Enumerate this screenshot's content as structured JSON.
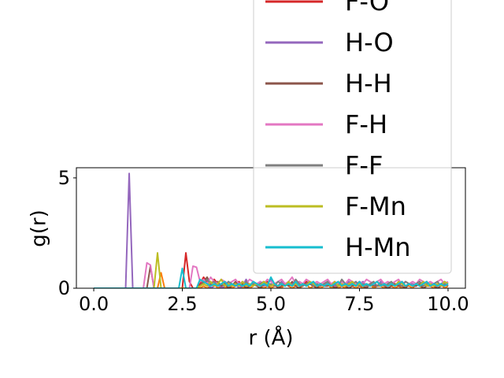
{
  "chart_data": {
    "type": "line",
    "y_label": "g(r)",
    "x_label": "r (Å)",
    "x": [
      0,
      0.1,
      0.2,
      0.3,
      0.4,
      0.5,
      0.6,
      0.7,
      0.8,
      0.9,
      1,
      1.1,
      1.2,
      1.3,
      1.4,
      1.5,
      1.6,
      1.7,
      1.8,
      1.9,
      2,
      2.1,
      2.2,
      2.3,
      2.4,
      2.5,
      2.6,
      2.7,
      2.8,
      2.9,
      3,
      3.1,
      3.2,
      3.3,
      3.4,
      3.5,
      3.6,
      3.7,
      3.8,
      3.9,
      4,
      4.1,
      4.2,
      4.3,
      4.4,
      4.5,
      4.6,
      4.7,
      4.8,
      4.9,
      5,
      5.1,
      5.2,
      5.3,
      5.4,
      5.5,
      5.6,
      5.7,
      5.8,
      5.9,
      6,
      6.1,
      6.2,
      6.3,
      6.4,
      6.5,
      6.6,
      6.7,
      6.8,
      6.9,
      7,
      7.1,
      7.2,
      7.3,
      7.4,
      7.5,
      7.6,
      7.7,
      7.8,
      7.9,
      8,
      8.1,
      8.2,
      8.3,
      8.4,
      8.5,
      8.6,
      8.7,
      8.8,
      8.9,
      9,
      9.1,
      9.2,
      9.3,
      9.4,
      9.5,
      9.6,
      9.7,
      9.8,
      9.9,
      10
    ],
    "series": [
      {
        "color": "#ff7f0e",
        "values": [
          0,
          0,
          0,
          0,
          0,
          0,
          0,
          0,
          0,
          0,
          0,
          0,
          0,
          0,
          0,
          0,
          0,
          0,
          0,
          0.7,
          0,
          0,
          0,
          0,
          0,
          0,
          0,
          0,
          0,
          0,
          0,
          0.1,
          0,
          0.1,
          0.2,
          0,
          0.1,
          0,
          0.1,
          0,
          0.1,
          0.2,
          0,
          0.1,
          0,
          0.1,
          0.2,
          0.1,
          0,
          0.1,
          0,
          0.1,
          0.1,
          0,
          0.2,
          0.1,
          0,
          0.1,
          0,
          0.1,
          0.2,
          0,
          0.1,
          0.1,
          0,
          0.1,
          0.2,
          0,
          0.1,
          0,
          0.1,
          0,
          0.2,
          0.1,
          0,
          0.1,
          0,
          0.1,
          0.2,
          0,
          0.1,
          0.1,
          0,
          0.2,
          0.1,
          0,
          0.1,
          0,
          0.1,
          0.1,
          0,
          0.2,
          0.1,
          0,
          0.1,
          0.1,
          0,
          0.1,
          0.2,
          0,
          0.1
        ]
      },
      {
        "name": "F-O",
        "color": "#d62728",
        "values": [
          0,
          0,
          0,
          0,
          0,
          0,
          0,
          0,
          0,
          0,
          0,
          0,
          0,
          0,
          0,
          0,
          0,
          0,
          0,
          0,
          0,
          0,
          0,
          0,
          0,
          0,
          1.6,
          0.3,
          0,
          0,
          0.2,
          0.5,
          0.3,
          0.1,
          0.4,
          0.2,
          0.1,
          0.3,
          0.2,
          0.1,
          0.2,
          0.3,
          0.1,
          0.2,
          0.1,
          0.3,
          0.2,
          0.1,
          0.2,
          0.3,
          0.1,
          0.2,
          0.1,
          0.3,
          0.2,
          0.1,
          0.2,
          0.1,
          0.2,
          0.1,
          0.3,
          0.2,
          0.1,
          0.2,
          0.1,
          0.2,
          0.3,
          0.1,
          0.2,
          0.1,
          0.2,
          0.1,
          0.2,
          0.3,
          0.1,
          0.2,
          0.1,
          0.2,
          0.1,
          0.2,
          0.3,
          0.1,
          0.2,
          0.1,
          0.2,
          0.2,
          0.1,
          0.3,
          0.1,
          0.2,
          0.1,
          0.2,
          0.1,
          0.2,
          0.3,
          0.1,
          0.2,
          0.1,
          0.2,
          0.1,
          0.2
        ]
      },
      {
        "name": "H-O",
        "color": "#9467bd",
        "values": [
          0,
          0,
          0,
          0,
          0,
          0,
          0,
          0,
          0,
          0,
          5.2,
          0,
          0,
          0,
          0,
          0,
          0,
          0,
          0,
          0,
          0,
          0,
          0,
          0,
          0,
          0,
          0,
          0,
          0,
          0,
          0.1,
          0.3,
          0.2,
          0,
          0.1,
          0.2,
          0,
          0.1,
          0.3,
          0.1,
          0.2,
          0,
          0.1,
          0.4,
          0.1,
          0.2,
          0.1,
          0.3,
          0.1,
          0.2,
          0.4,
          0.2,
          0.1,
          0.3,
          0.1,
          0.2,
          0.2,
          0.1,
          0.3,
          0.2,
          0.1,
          0.2,
          0.3,
          0.1,
          0.2,
          0.1,
          0.3,
          0.2,
          0.1,
          0.2,
          0.2,
          0.1,
          0.3,
          0.2,
          0.1,
          0.2,
          0.3,
          0.1,
          0.2,
          0.2,
          0.1,
          0.3,
          0.2,
          0.1,
          0.2,
          0.1,
          0.2,
          0.3,
          0.1,
          0.2,
          0.2,
          0.1,
          0.2,
          0.3,
          0.1,
          0.2,
          0.2,
          0.1,
          0.2,
          0.3,
          0.2
        ]
      },
      {
        "name": "H-H",
        "color": "#8c564b",
        "values": [
          0,
          0,
          0,
          0,
          0,
          0,
          0,
          0,
          0,
          0,
          0,
          0,
          0,
          0,
          0,
          0,
          1,
          0,
          0,
          0,
          0,
          0,
          0,
          0,
          0,
          0,
          0,
          0,
          0,
          0,
          0.1,
          0.3,
          0.5,
          0.2,
          0.1,
          0.3,
          0.1,
          0.2,
          0,
          0.1,
          0.3,
          0.1,
          0.2,
          0,
          0.1,
          0.2,
          0.1,
          0,
          0.2,
          0.1,
          0.1,
          0.2,
          0,
          0.1,
          0.2,
          0.1,
          0.3,
          0.1,
          0,
          0.2,
          0.1,
          0.2,
          0.1,
          0,
          0.2,
          0.1,
          0.1,
          0.2,
          0,
          0.1,
          0.2,
          0.1,
          0,
          0.1,
          0.2,
          0.1,
          0.1,
          0,
          0.2,
          0.1,
          0.1,
          0.2,
          0.1,
          0,
          0.1,
          0.2,
          0.1,
          0.1,
          0,
          0.2,
          0.1,
          0.1,
          0.2,
          0,
          0.1,
          0.2,
          0.1,
          0,
          0.1,
          0.2,
          0.1
        ]
      },
      {
        "name": "F-H",
        "color": "#e377c2",
        "values": [
          0,
          0,
          0,
          0,
          0,
          0,
          0,
          0,
          0,
          0,
          0,
          0,
          0,
          0,
          0,
          1.15,
          1.05,
          0,
          0,
          0,
          0,
          0,
          0,
          0,
          0,
          0,
          0,
          0,
          1,
          0.95,
          0.3,
          0.4,
          0.2,
          0.5,
          0.3,
          0.2,
          0.4,
          0.3,
          0.2,
          0.3,
          0.4,
          0.2,
          0.3,
          0.2,
          0.4,
          0.3,
          0.2,
          0.3,
          0.2,
          0.4,
          0.3,
          0.2,
          0.3,
          0.4,
          0.2,
          0.3,
          0.5,
          0.2,
          0.3,
          0.2,
          0.4,
          0.3,
          0.2,
          0.3,
          0.2,
          0.3,
          0.4,
          0.2,
          0.3,
          0.2,
          0.3,
          0.2,
          0.4,
          0.3,
          0.2,
          0.3,
          0.2,
          0.4,
          0.3,
          0.2,
          0.3,
          0.4,
          0.2,
          0.3,
          0.2,
          0.3,
          0.4,
          0.2,
          0.3,
          0.2,
          0.3,
          0.2,
          0.4,
          0.3,
          0.2,
          0.3,
          0.2,
          0.3,
          0.4,
          0.2,
          0.3
        ]
      },
      {
        "name": "F-F",
        "color": "#7f7f7f",
        "values": [
          0,
          0,
          0,
          0,
          0,
          0,
          0,
          0,
          0,
          0,
          0,
          0,
          0,
          0,
          0,
          0,
          0,
          0,
          0,
          0,
          0,
          0,
          0,
          0,
          0,
          0,
          0,
          0,
          0,
          0,
          0.1,
          0.2,
          0.4,
          0.2,
          0.3,
          0.1,
          0.2,
          0.1,
          0.3,
          0.2,
          0.1,
          0.2,
          0.1,
          0.3,
          0.1,
          0.2,
          0.1,
          0.2,
          0.3,
          0.1,
          0.2,
          0.1,
          0.3,
          0.2,
          0.1,
          0.2,
          0.1,
          0.4,
          0.2,
          0.1,
          0.2,
          0.3,
          0.1,
          0.2,
          0.1,
          0.2,
          0.3,
          0.1,
          0.2,
          0.1,
          0.4,
          0.2,
          0.1,
          0.2,
          0.3,
          0.1,
          0.2,
          0.1,
          0.2,
          0.3,
          0.1,
          0.2,
          0.1,
          0.2,
          0.3,
          0.1,
          0.2,
          0.1,
          0.3,
          0.2,
          0.1,
          0.2,
          0.3,
          0.1,
          0.2,
          0.1,
          0.2,
          0.3,
          0.1,
          0.2,
          0.1
        ]
      },
      {
        "name": "F-Mn",
        "color": "#bcbd22",
        "values": [
          0,
          0,
          0,
          0,
          0,
          0,
          0,
          0,
          0,
          0,
          0,
          0,
          0,
          0,
          0,
          0,
          0,
          0,
          1.6,
          0,
          0,
          0,
          0,
          0,
          0,
          0,
          0,
          0,
          0,
          0,
          0.1,
          0.2,
          0.1,
          0.3,
          0.1,
          0.2,
          0.4,
          0.1,
          0.2,
          0.1,
          0.2,
          0.1,
          0.3,
          0.1,
          0.2,
          0.1,
          0.2,
          0.1,
          0.3,
          0.2,
          0.1,
          0.2,
          0.1,
          0.2,
          0.1,
          0.3,
          0.1,
          0.2,
          0.1,
          0.2,
          0.1,
          0.3,
          0.2,
          0.1,
          0.2,
          0.1,
          0.2,
          0.1,
          0.3,
          0.1,
          0.2,
          0.1,
          0.2,
          0.3,
          0.1,
          0.2,
          0.1,
          0.2,
          0.1,
          0.2,
          0.3,
          0.1,
          0.2,
          0.1,
          0.2,
          0.1,
          0.3,
          0.2,
          0.1,
          0.2,
          0.1,
          0.2,
          0.1,
          0.3,
          0.1,
          0.2,
          0.1,
          0.2,
          0.1,
          0.3,
          0.2
        ]
      },
      {
        "name": "H-Mn",
        "color": "#17becf",
        "values": [
          0,
          0,
          0,
          0,
          0,
          0,
          0,
          0,
          0,
          0,
          0,
          0,
          0,
          0,
          0,
          0,
          0,
          0,
          0,
          0,
          0,
          0,
          0,
          0,
          0,
          0.9,
          0,
          0,
          0,
          0,
          0.4,
          0.3,
          0.2,
          0.1,
          0.2,
          0.1,
          0.2,
          0.3,
          0.1,
          0.2,
          0.1,
          0.2,
          0.1,
          0.2,
          0.1,
          0.3,
          0.2,
          0.1,
          0.2,
          0.1,
          0.5,
          0.2,
          0.1,
          0.2,
          0.1,
          0.2,
          0.1,
          0.3,
          0.1,
          0.2,
          0.1,
          0.2,
          0.3,
          0.1,
          0.2,
          0.1,
          0.2,
          0.1,
          0.2,
          0.3,
          0.1,
          0.2,
          0.1,
          0.2,
          0.1,
          0.3,
          0.1,
          0.2,
          0.1,
          0.2,
          0.3,
          0.1,
          0.2,
          0.1,
          0.2,
          0.1,
          0.2,
          0.3,
          0.1,
          0.2,
          0.1,
          0.2,
          0.1,
          0.2,
          0.3,
          0.1,
          0.2,
          0.1,
          0.2,
          0.1,
          0.2
        ]
      }
    ],
    "xlim": [
      -0.49,
      10.49
    ],
    "ylim": [
      0,
      5.46
    ],
    "xticks": [
      {
        "value": 0,
        "label": "0.0"
      },
      {
        "value": 2.5,
        "label": "2.5"
      },
      {
        "value": 5,
        "label": "5.0"
      },
      {
        "value": 7.5,
        "label": "7.5"
      },
      {
        "value": 10,
        "label": "10.0"
      }
    ],
    "yticks": [
      0,
      5
    ]
  }
}
